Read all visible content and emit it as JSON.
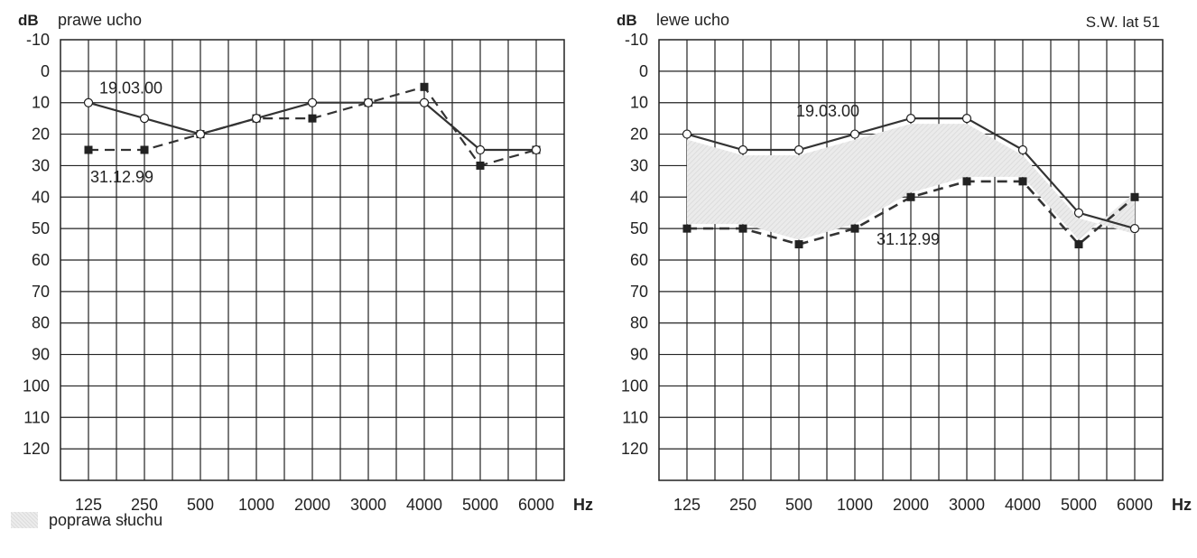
{
  "chart_data": [
    {
      "type": "line",
      "title": "prawe ucho",
      "y_unit": "dB",
      "x_unit": "Hz",
      "categories": [
        "125",
        "250",
        "500",
        "1000",
        "2000",
        "3000",
        "4000",
        "5000",
        "6000"
      ],
      "y_ticks": [
        "-10",
        "0",
        "10",
        "20",
        "30",
        "40",
        "50",
        "60",
        "70",
        "80",
        "90",
        "100",
        "110",
        "120"
      ],
      "ylim": [
        -10,
        120
      ],
      "y_inverted": true,
      "grid": true,
      "series": [
        {
          "name": "19.03.00",
          "style": "solid",
          "marker": "circle",
          "values": [
            10,
            15,
            20,
            15,
            10,
            10,
            10,
            25,
            25
          ]
        },
        {
          "name": "31.12.99",
          "style": "dashed",
          "marker": "square",
          "values": [
            25,
            25,
            20,
            15,
            15,
            10,
            5,
            30,
            25
          ]
        }
      ],
      "fill_between": false
    },
    {
      "type": "line",
      "title": "lewe ucho",
      "subtitle": "S.W. lat 51",
      "y_unit": "dB",
      "x_unit": "Hz",
      "categories": [
        "125",
        "250",
        "500",
        "1000",
        "2000",
        "3000",
        "4000",
        "5000",
        "6000"
      ],
      "y_ticks": [
        "-10",
        "0",
        "10",
        "20",
        "30",
        "40",
        "50",
        "60",
        "70",
        "80",
        "90",
        "100",
        "110",
        "120"
      ],
      "ylim": [
        -10,
        120
      ],
      "y_inverted": true,
      "grid": true,
      "series": [
        {
          "name": "19.03.00",
          "style": "solid",
          "marker": "circle",
          "values": [
            20,
            25,
            25,
            20,
            15,
            15,
            25,
            45,
            50
          ]
        },
        {
          "name": "31.12.99",
          "style": "dashed",
          "marker": "square",
          "values": [
            50,
            50,
            55,
            50,
            40,
            35,
            35,
            55,
            40
          ]
        }
      ],
      "fill_between": true
    }
  ],
  "legend": {
    "label": "poprawa słuchu",
    "fill_color": "#e2e2e2"
  },
  "colors": {
    "line": "#333333",
    "grid": "#222222"
  }
}
